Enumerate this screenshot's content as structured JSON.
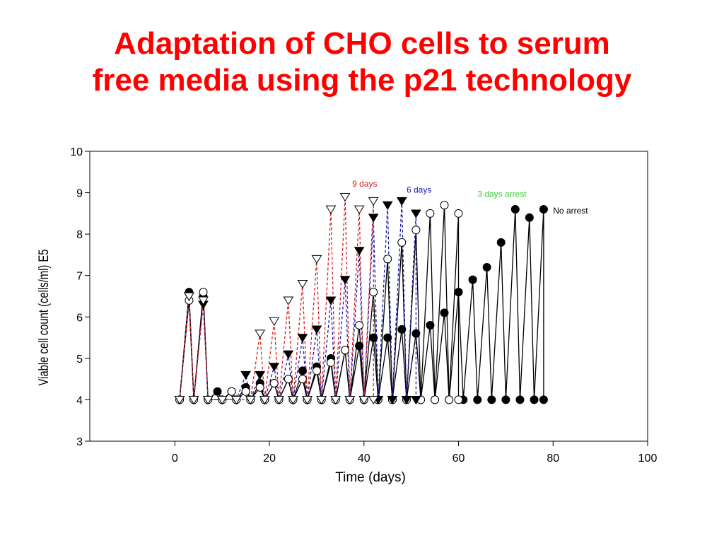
{
  "slide": {
    "title_line1": "Adaptation of CHO cells to serum",
    "title_line2": "free media using the p21 technology"
  },
  "chart_data": {
    "type": "line",
    "xlabel": "Time (days)",
    "ylabel": "Viable cell count (cells/ml) E5",
    "xlim": [
      -18,
      100
    ],
    "ylim": [
      3,
      10
    ],
    "x_ticks": [
      0,
      20,
      40,
      60,
      80,
      100
    ],
    "y_ticks": [
      3,
      4,
      5,
      6,
      7,
      8,
      9,
      10
    ],
    "grid": false,
    "annotations": [
      {
        "text": "9 days",
        "x": 37.5,
        "y": 9.15,
        "color": "#d62020"
      },
      {
        "text": "6 days",
        "x": 49,
        "y": 9.0,
        "color": "#1a1aa8"
      },
      {
        "text": "3 days arrest",
        "x": 64,
        "y": 8.9,
        "color": "#33cc33"
      },
      {
        "text": "No arrest",
        "x": 80,
        "y": 8.5,
        "color": "#000000"
      }
    ],
    "series": [
      {
        "name": "No arrest",
        "marker": "filled-circle",
        "line_color": "#000000",
        "line_style": "solid",
        "points": [
          [
            1,
            4
          ],
          [
            3,
            6.6
          ],
          [
            4,
            4
          ],
          [
            6,
            6.5
          ],
          [
            7,
            4
          ],
          [
            9,
            4.2
          ],
          [
            10,
            4
          ],
          [
            12,
            4.2
          ],
          [
            13,
            4
          ],
          [
            15,
            4.3
          ],
          [
            16,
            4
          ],
          [
            18,
            4.4
          ],
          [
            19,
            4
          ],
          [
            21,
            4.4
          ],
          [
            22,
            4
          ],
          [
            24,
            4.5
          ],
          [
            25,
            4
          ],
          [
            27,
            4.7
          ],
          [
            28,
            4
          ],
          [
            30,
            4.8
          ],
          [
            31,
            4
          ],
          [
            33,
            5.0
          ],
          [
            34,
            4
          ],
          [
            36,
            5.2
          ],
          [
            37,
            4
          ],
          [
            39,
            5.3
          ],
          [
            40,
            4
          ],
          [
            42,
            5.5
          ],
          [
            43,
            4
          ],
          [
            45,
            5.5
          ],
          [
            46,
            4
          ],
          [
            48,
            5.7
          ],
          [
            49,
            4
          ],
          [
            51,
            5.6
          ],
          [
            52,
            4
          ],
          [
            54,
            5.8
          ],
          [
            55,
            4
          ],
          [
            57,
            6.1
          ],
          [
            58,
            4
          ],
          [
            60,
            6.6
          ],
          [
            61,
            4
          ],
          [
            63,
            6.9
          ],
          [
            64,
            4
          ],
          [
            66,
            7.2
          ],
          [
            67,
            4
          ],
          [
            69,
            7.8
          ],
          [
            70,
            4
          ],
          [
            72,
            8.6
          ],
          [
            73,
            4
          ],
          [
            75,
            8.4
          ],
          [
            76,
            4
          ],
          [
            78,
            8.6
          ],
          [
            78,
            4
          ]
        ]
      },
      {
        "name": "3 days arrest",
        "marker": "open-circle",
        "line_color": "#000000",
        "line_style": "solid",
        "points": [
          [
            1,
            4
          ],
          [
            3,
            6.4
          ],
          [
            4,
            4
          ],
          [
            6,
            6.6
          ],
          [
            7,
            4
          ],
          [
            10,
            4
          ],
          [
            12,
            4.2
          ],
          [
            13,
            4
          ],
          [
            15,
            4.2
          ],
          [
            16,
            4
          ],
          [
            18,
            4.3
          ],
          [
            19,
            4
          ],
          [
            21,
            4.4
          ],
          [
            22,
            4
          ],
          [
            24,
            4.5
          ],
          [
            25,
            4
          ],
          [
            27,
            4.5
          ],
          [
            28,
            4
          ],
          [
            30,
            4.7
          ],
          [
            31,
            4
          ],
          [
            33,
            4.9
          ],
          [
            34,
            4
          ],
          [
            36,
            5.2
          ],
          [
            37,
            4
          ],
          [
            39,
            5.8
          ],
          [
            40,
            4
          ],
          [
            42,
            6.6
          ],
          [
            43,
            4
          ],
          [
            45,
            7.4
          ],
          [
            46,
            4
          ],
          [
            48,
            7.8
          ],
          [
            49,
            4
          ],
          [
            51,
            8.1
          ],
          [
            52,
            4
          ],
          [
            54,
            8.5
          ],
          [
            55,
            4
          ],
          [
            57,
            8.7
          ],
          [
            58,
            4
          ],
          [
            60,
            8.5
          ],
          [
            60,
            4
          ]
        ]
      },
      {
        "name": "6 days",
        "marker": "filled-triangle-down",
        "line_color": "#1a1aa8",
        "line_style": "dashed",
        "points": [
          [
            1,
            4
          ],
          [
            3,
            6.5
          ],
          [
            4,
            4
          ],
          [
            6,
            6.3
          ],
          [
            7,
            4
          ],
          [
            10,
            4
          ],
          [
            13,
            4
          ],
          [
            15,
            4.6
          ],
          [
            16,
            4
          ],
          [
            18,
            4.6
          ],
          [
            19,
            4
          ],
          [
            21,
            4.8
          ],
          [
            22,
            4
          ],
          [
            24,
            5.1
          ],
          [
            25,
            4
          ],
          [
            27,
            5.5
          ],
          [
            28,
            4
          ],
          [
            30,
            5.7
          ],
          [
            31,
            4
          ],
          [
            33,
            6.4
          ],
          [
            34,
            4
          ],
          [
            36,
            6.9
          ],
          [
            37,
            4
          ],
          [
            39,
            7.6
          ],
          [
            40,
            4
          ],
          [
            42,
            8.4
          ],
          [
            43,
            4
          ],
          [
            45,
            8.7
          ],
          [
            46,
            4
          ],
          [
            48,
            8.8
          ],
          [
            49,
            4
          ],
          [
            51,
            8.5
          ],
          [
            51,
            4
          ]
        ]
      },
      {
        "name": "9 days",
        "marker": "open-triangle-down",
        "line_color": "#d62020",
        "line_style": "dashed",
        "points": [
          [
            1,
            4
          ],
          [
            3,
            6.5
          ],
          [
            4,
            4
          ],
          [
            6,
            6.4
          ],
          [
            7,
            4
          ],
          [
            10,
            4
          ],
          [
            13,
            4
          ],
          [
            16,
            4
          ],
          [
            18,
            5.6
          ],
          [
            19,
            4
          ],
          [
            21,
            5.9
          ],
          [
            22,
            4
          ],
          [
            24,
            6.4
          ],
          [
            25,
            4
          ],
          [
            27,
            6.8
          ],
          [
            28,
            4
          ],
          [
            30,
            7.4
          ],
          [
            31,
            4
          ],
          [
            33,
            8.6
          ],
          [
            34,
            4
          ],
          [
            36,
            8.9
          ],
          [
            37,
            4
          ],
          [
            39,
            8.6
          ],
          [
            40,
            4
          ],
          [
            42,
            8.8
          ],
          [
            42,
            4
          ]
        ]
      }
    ]
  }
}
